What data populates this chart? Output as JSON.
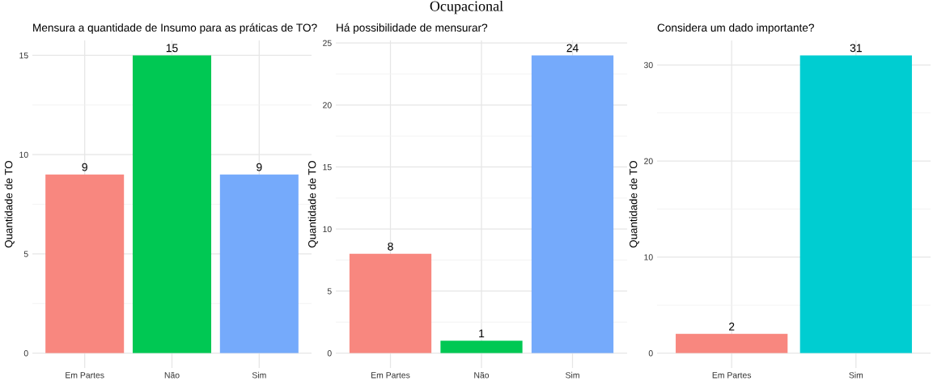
{
  "chart_data": [
    {
      "type": "bar",
      "title": "Mensura a quantidade de Insumo para as práticas de TO?",
      "ylabel": "Quantidade de TO",
      "categories": [
        "Em Partes",
        "Não",
        "Sim"
      ],
      "values": [
        9,
        15,
        9
      ],
      "colors": [
        "#f8877f",
        "#00c853",
        "#75aafb"
      ],
      "ylim": [
        -0.75,
        15.75
      ],
      "yticks": [
        0,
        5,
        10,
        15
      ],
      "grid": true,
      "data_labels": true
    },
    {
      "type": "bar",
      "title": "Há possibilidade de mensurar?",
      "ylabel": "Quantidade de TO",
      "categories": [
        "Em Partes",
        "Não",
        "Sim"
      ],
      "values": [
        8,
        1,
        24
      ],
      "colors": [
        "#f8877f",
        "#00c853",
        "#75aafb"
      ],
      "ylim": [
        -1.2,
        25.2
      ],
      "yticks": [
        0,
        5,
        10,
        15,
        20,
        25
      ],
      "grid": true,
      "data_labels": true,
      "annotations": [
        "Ocupacional"
      ]
    },
    {
      "type": "bar",
      "title": "Considera um dado importante?",
      "ylabel": "Quantidade de TO",
      "categories": [
        "Em Partes",
        "Sim"
      ],
      "values": [
        2,
        31
      ],
      "colors": [
        "#f8877f",
        "#00cdd1"
      ],
      "ylim": [
        -1.55,
        32.55
      ],
      "yticks": [
        0,
        10,
        20,
        30
      ],
      "grid": true,
      "data_labels": true
    }
  ]
}
